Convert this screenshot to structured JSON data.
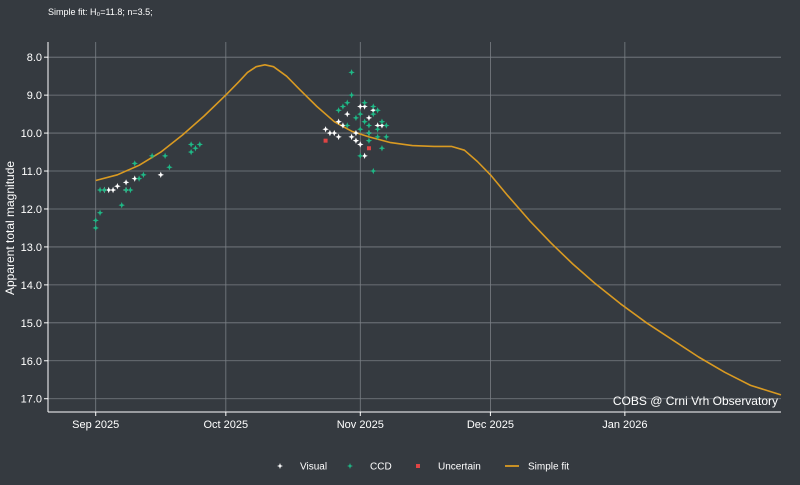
{
  "caption": "Simple fit: H₀=11.8; n=3.5;",
  "chart_data": {
    "type": "scatter",
    "title": "",
    "xlabel": "",
    "ylabel": "Apparent total magnitude",
    "x_is_date": true,
    "xlim": [
      "2025-08-21",
      "2026-02-06"
    ],
    "ylim": [
      7.6,
      17.35
    ],
    "y_inverted": true,
    "y_ticks": [
      8.0,
      9.0,
      10.0,
      11.0,
      12.0,
      13.0,
      14.0,
      15.0,
      16.0,
      17.0
    ],
    "x_ticks": [
      {
        "date": "2025-09-01",
        "label": "Sep 2025"
      },
      {
        "date": "2025-10-01",
        "label": "Oct 2025"
      },
      {
        "date": "2025-11-01",
        "label": "Nov 2025"
      },
      {
        "date": "2025-12-01",
        "label": "Dec 2025"
      },
      {
        "date": "2026-01-01",
        "label": "Jan 2026"
      }
    ],
    "grid": true,
    "legend_position": "bottom-center",
    "watermark": "COBS @ Crni Vrh Observatory",
    "series": [
      {
        "name": "Visual",
        "kind": "points",
        "marker": "✦",
        "color": "#ffffff",
        "points": [
          [
            "2025-09-03",
            11.5
          ],
          [
            "2025-09-04",
            11.5
          ],
          [
            "2025-09-05",
            11.5
          ],
          [
            "2025-09-06",
            11.4
          ],
          [
            "2025-09-08",
            11.3
          ],
          [
            "2025-09-08",
            11.5
          ],
          [
            "2025-09-10",
            11.2
          ],
          [
            "2025-09-16",
            11.1
          ],
          [
            "2025-10-24",
            9.9
          ],
          [
            "2025-10-25",
            10.0
          ],
          [
            "2025-10-26",
            10.0
          ],
          [
            "2025-10-27",
            9.7
          ],
          [
            "2025-10-27",
            10.1
          ],
          [
            "2025-10-28",
            9.8
          ],
          [
            "2025-10-29",
            9.5
          ],
          [
            "2025-10-30",
            10.1
          ],
          [
            "2025-10-31",
            10.0
          ],
          [
            "2025-10-31",
            10.2
          ],
          [
            "2025-11-01",
            9.3
          ],
          [
            "2025-11-01",
            10.3
          ],
          [
            "2025-11-02",
            9.3
          ],
          [
            "2025-11-02",
            10.6
          ],
          [
            "2025-11-03",
            9.6
          ],
          [
            "2025-11-03",
            10.0
          ],
          [
            "2025-11-04",
            9.4
          ],
          [
            "2025-11-05",
            9.8
          ],
          [
            "2025-11-06",
            9.8
          ]
        ]
      },
      {
        "name": "CCD",
        "kind": "points",
        "marker": "✦",
        "color": "#1fb886",
        "points": [
          [
            "2025-09-01",
            12.3
          ],
          [
            "2025-09-01",
            12.5
          ],
          [
            "2025-09-02",
            11.5
          ],
          [
            "2025-09-02",
            12.1
          ],
          [
            "2025-09-03",
            11.5
          ],
          [
            "2025-09-07",
            11.9
          ],
          [
            "2025-09-08",
            11.5
          ],
          [
            "2025-09-09",
            11.5
          ],
          [
            "2025-09-10",
            10.8
          ],
          [
            "2025-09-11",
            11.2
          ],
          [
            "2025-09-12",
            11.1
          ],
          [
            "2025-09-14",
            10.6
          ],
          [
            "2025-09-17",
            10.6
          ],
          [
            "2025-09-18",
            10.9
          ],
          [
            "2025-09-23",
            10.3
          ],
          [
            "2025-09-23",
            10.5
          ],
          [
            "2025-09-24",
            10.4
          ],
          [
            "2025-09-25",
            10.3
          ],
          [
            "2025-10-27",
            9.4
          ],
          [
            "2025-10-28",
            9.3
          ],
          [
            "2025-10-29",
            9.2
          ],
          [
            "2025-10-29",
            9.8
          ],
          [
            "2025-10-30",
            8.4
          ],
          [
            "2025-10-30",
            9.0
          ],
          [
            "2025-10-31",
            9.6
          ],
          [
            "2025-11-01",
            9.5
          ],
          [
            "2025-11-01",
            9.9
          ],
          [
            "2025-11-01",
            10.6
          ],
          [
            "2025-11-02",
            9.2
          ],
          [
            "2025-11-02",
            9.7
          ],
          [
            "2025-11-03",
            9.8
          ],
          [
            "2025-11-03",
            10.0
          ],
          [
            "2025-11-03",
            10.2
          ],
          [
            "2025-11-04",
            9.3
          ],
          [
            "2025-11-04",
            9.5
          ],
          [
            "2025-11-04",
            11.0
          ],
          [
            "2025-11-05",
            9.4
          ],
          [
            "2025-11-05",
            9.9
          ],
          [
            "2025-11-05",
            10.1
          ],
          [
            "2025-11-06",
            9.7
          ],
          [
            "2025-11-06",
            10.4
          ],
          [
            "2025-11-07",
            9.8
          ],
          [
            "2025-11-07",
            10.1
          ]
        ]
      },
      {
        "name": "Uncertain",
        "kind": "points",
        "marker": "■",
        "color": "#e04444",
        "points": [
          [
            "2025-10-24",
            10.2
          ],
          [
            "2025-11-03",
            10.4
          ]
        ]
      },
      {
        "name": "Simple fit",
        "kind": "line",
        "color": "#d99a22",
        "points": [
          [
            "2025-09-01",
            11.25
          ],
          [
            "2025-09-06",
            11.1
          ],
          [
            "2025-09-11",
            10.85
          ],
          [
            "2025-09-16",
            10.5
          ],
          [
            "2025-09-21",
            10.05
          ],
          [
            "2025-09-26",
            9.55
          ],
          [
            "2025-10-01",
            9.0
          ],
          [
            "2025-10-04",
            8.65
          ],
          [
            "2025-10-06",
            8.4
          ],
          [
            "2025-10-08",
            8.25
          ],
          [
            "2025-10-10",
            8.2
          ],
          [
            "2025-10-12",
            8.25
          ],
          [
            "2025-10-15",
            8.5
          ],
          [
            "2025-10-18",
            8.85
          ],
          [
            "2025-10-22",
            9.3
          ],
          [
            "2025-10-26",
            9.7
          ],
          [
            "2025-10-30",
            9.95
          ],
          [
            "2025-11-03",
            10.1
          ],
          [
            "2025-11-08",
            10.25
          ],
          [
            "2025-11-13",
            10.33
          ],
          [
            "2025-11-18",
            10.35
          ],
          [
            "2025-11-22",
            10.35
          ],
          [
            "2025-11-25",
            10.45
          ],
          [
            "2025-11-28",
            10.75
          ],
          [
            "2025-12-01",
            11.1
          ],
          [
            "2025-12-05",
            11.65
          ],
          [
            "2025-12-10",
            12.3
          ],
          [
            "2025-12-15",
            12.9
          ],
          [
            "2025-12-20",
            13.45
          ],
          [
            "2025-12-25",
            13.95
          ],
          [
            "2025-12-31",
            14.5
          ],
          [
            "2026-01-06",
            15.0
          ],
          [
            "2026-01-12",
            15.45
          ],
          [
            "2026-01-18",
            15.9
          ],
          [
            "2026-01-24",
            16.3
          ],
          [
            "2026-01-30",
            16.65
          ],
          [
            "2026-02-06",
            16.9
          ]
        ]
      }
    ]
  }
}
